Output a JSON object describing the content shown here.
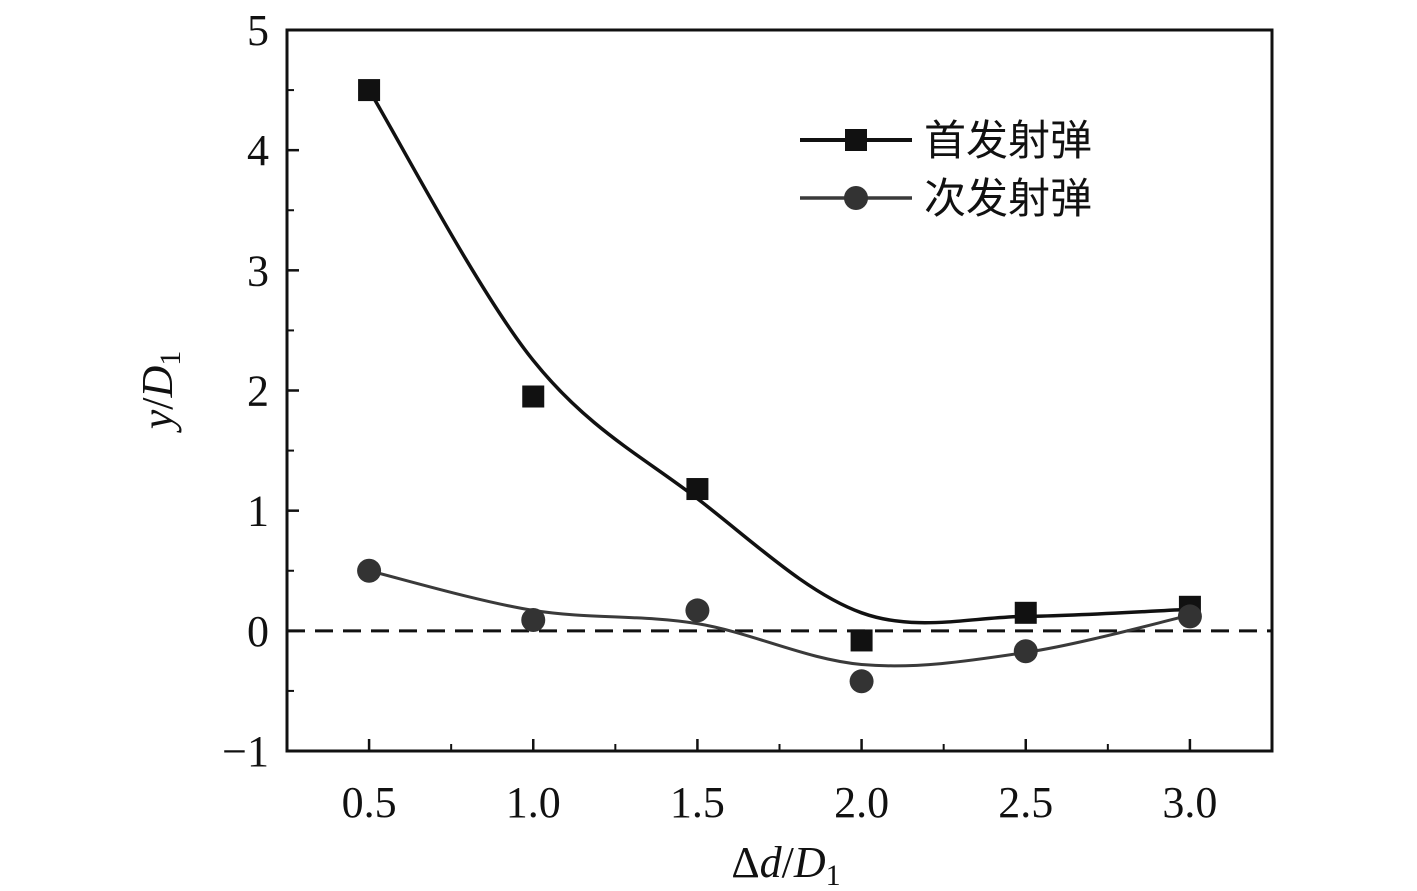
{
  "chart_data": {
    "type": "line",
    "title": "",
    "x": [
      0.5,
      1.0,
      1.5,
      2.0,
      2.5,
      3.0
    ],
    "xlim": [
      0.25,
      3.25
    ],
    "ylim": [
      -1,
      5
    ],
    "xticks": [
      0.5,
      1.0,
      1.5,
      2.0,
      2.5,
      3.0
    ],
    "xtick_labels": [
      "0.5",
      "1.0",
      "1.5",
      "2.0",
      "2.5",
      "3.0"
    ],
    "yticks": [
      -1,
      0,
      1,
      2,
      3,
      4,
      5
    ],
    "ytick_labels": [
      "−1",
      "0",
      "1",
      "2",
      "3",
      "4",
      "5"
    ],
    "xlabel": {
      "pre": "Δ",
      "var": "d",
      "slash": "/",
      "var2": "D",
      "sub": "1"
    },
    "ylabel": {
      "var": "y",
      "slash": "/",
      "var2": "D",
      "sub": "1"
    },
    "series": [
      {
        "name": "首发射弹",
        "marker": "square",
        "color": "#111111",
        "values": [
          4.5,
          1.95,
          1.18,
          -0.08,
          0.15,
          0.2
        ],
        "smooth_curve": [
          4.5,
          2.25,
          1.1,
          0.15,
          0.12,
          0.18
        ]
      },
      {
        "name": "次发射弹",
        "marker": "circle",
        "color": "#3a3a3a",
        "values": [
          0.5,
          0.09,
          0.17,
          -0.42,
          -0.17,
          0.12
        ],
        "smooth_curve": [
          0.5,
          0.17,
          0.06,
          -0.28,
          -0.18,
          0.13
        ]
      }
    ],
    "reference_line": {
      "y": 0,
      "style": "dashed"
    },
    "legend_position": "top-right",
    "grid": false
  }
}
